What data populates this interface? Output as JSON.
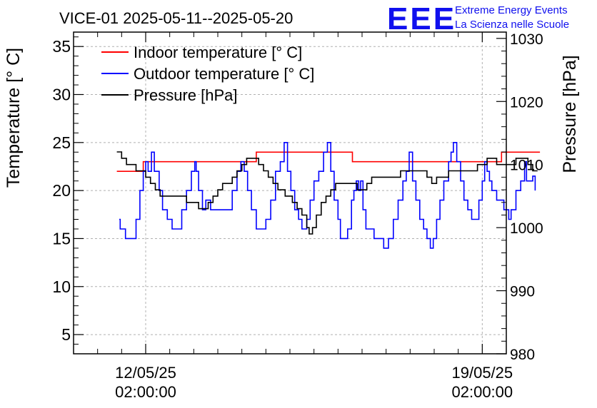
{
  "chart_data": {
    "type": "line",
    "title": "VICE-01 2025-05-11--2025-05-20",
    "logo": {
      "text": "EEE",
      "line1": "Extreme Energy Events",
      "line2": "La Scienza nelle Scuole",
      "color": "#1010ee"
    },
    "x_axis": {
      "range_days": [
        0,
        9
      ],
      "ticks": [
        {
          "day": 1.5,
          "date": "12/05/25",
          "time": "02:00:00"
        },
        {
          "day": 8.5,
          "date": "19/05/25",
          "time": "02:00:00"
        }
      ]
    },
    "y_left": {
      "label": "Temperature [° C]",
      "range": [
        3,
        36.5
      ],
      "ticks": [
        5,
        10,
        15,
        20,
        25,
        30,
        35
      ]
    },
    "y_right": {
      "label": "Pressure [hPa]",
      "range": [
        980,
        1031
      ],
      "ticks": [
        980,
        990,
        1000,
        1010,
        1020,
        1030
      ]
    },
    "legend": [
      {
        "key": "indoor",
        "label": "Indoor temperature [° C]",
        "color": "#ff0000"
      },
      {
        "key": "outdoor",
        "label": "Outdoor temperature [° C]",
        "color": "#0000ff"
      },
      {
        "key": "pressure",
        "label": "Pressure [hPa]",
        "color": "#000000"
      }
    ],
    "series": [
      {
        "name": "Indoor temperature [° C]",
        "axis": "left",
        "color": "#ff0000",
        "points": [
          [
            0.9,
            22
          ],
          [
            1.4,
            22
          ],
          [
            1.45,
            23
          ],
          [
            3.8,
            23
          ],
          [
            3.8,
            24
          ],
          [
            5.8,
            24
          ],
          [
            5.8,
            23
          ],
          [
            6.3,
            23
          ],
          [
            7.0,
            23
          ],
          [
            7.6,
            23
          ],
          [
            8.3,
            23
          ],
          [
            8.6,
            23
          ],
          [
            8.9,
            24
          ],
          [
            9.7,
            24
          ]
        ]
      },
      {
        "name": "Outdoor temperature [° C]",
        "axis": "left",
        "color": "#0000ff",
        "points": [
          [
            0.95,
            17
          ],
          [
            0.97,
            16
          ],
          [
            1.05,
            16
          ],
          [
            1.08,
            15
          ],
          [
            1.2,
            15
          ],
          [
            1.3,
            17
          ],
          [
            1.38,
            20
          ],
          [
            1.45,
            22
          ],
          [
            1.5,
            23
          ],
          [
            1.55,
            22
          ],
          [
            1.62,
            24
          ],
          [
            1.68,
            22
          ],
          [
            1.78,
            20
          ],
          [
            1.85,
            18
          ],
          [
            1.95,
            17
          ],
          [
            2.05,
            16
          ],
          [
            2.15,
            16
          ],
          [
            2.25,
            18
          ],
          [
            2.35,
            20
          ],
          [
            2.45,
            22
          ],
          [
            2.52,
            23
          ],
          [
            2.55,
            22
          ],
          [
            2.6,
            20
          ],
          [
            2.68,
            18
          ],
          [
            2.75,
            19
          ],
          [
            2.85,
            18
          ],
          [
            3.0,
            18
          ],
          [
            3.2,
            18
          ],
          [
            3.3,
            20
          ],
          [
            3.4,
            22
          ],
          [
            3.48,
            23
          ],
          [
            3.55,
            22
          ],
          [
            3.62,
            20
          ],
          [
            3.7,
            18
          ],
          [
            3.8,
            16
          ],
          [
            3.9,
            16
          ],
          [
            4.0,
            17
          ],
          [
            4.1,
            19
          ],
          [
            4.2,
            22
          ],
          [
            4.3,
            23
          ],
          [
            4.38,
            25
          ],
          [
            4.45,
            22
          ],
          [
            4.52,
            20
          ],
          [
            4.6,
            18
          ],
          [
            4.68,
            17
          ],
          [
            4.75,
            16
          ],
          [
            4.85,
            17
          ],
          [
            4.92,
            19
          ],
          [
            5.0,
            21
          ],
          [
            5.1,
            22
          ],
          [
            5.2,
            24
          ],
          [
            5.28,
            25
          ],
          [
            5.35,
            22
          ],
          [
            5.42,
            19
          ],
          [
            5.5,
            17
          ],
          [
            5.55,
            15
          ],
          [
            5.65,
            15
          ],
          [
            5.7,
            16
          ],
          [
            5.78,
            19
          ],
          [
            5.83,
            20
          ],
          [
            5.88,
            21
          ],
          [
            5.93,
            20
          ],
          [
            5.97,
            21
          ],
          [
            6.02,
            18
          ],
          [
            6.08,
            16
          ],
          [
            6.15,
            16
          ],
          [
            6.25,
            15
          ],
          [
            6.35,
            15
          ],
          [
            6.45,
            14
          ],
          [
            6.55,
            15
          ],
          [
            6.65,
            17
          ],
          [
            6.75,
            19
          ],
          [
            6.85,
            21
          ],
          [
            6.92,
            22
          ],
          [
            6.98,
            24
          ],
          [
            7.05,
            21
          ],
          [
            7.12,
            19
          ],
          [
            7.2,
            17
          ],
          [
            7.28,
            16
          ],
          [
            7.35,
            15
          ],
          [
            7.42,
            14
          ],
          [
            7.48,
            15
          ],
          [
            7.55,
            17
          ],
          [
            7.62,
            19
          ],
          [
            7.7,
            21
          ],
          [
            7.8,
            23
          ],
          [
            7.85,
            24
          ],
          [
            7.9,
            25
          ],
          [
            7.97,
            23
          ],
          [
            8.05,
            21
          ],
          [
            8.12,
            19
          ],
          [
            8.2,
            18
          ],
          [
            8.28,
            17
          ],
          [
            8.35,
            17
          ],
          [
            8.43,
            19
          ],
          [
            8.5,
            21
          ],
          [
            8.55,
            23
          ],
          [
            8.6,
            22
          ],
          [
            8.65,
            21
          ],
          [
            8.7,
            20
          ],
          [
            8.8,
            19
          ],
          [
            8.95,
            18
          ],
          [
            9.05,
            17
          ],
          [
            9.1,
            18
          ],
          [
            9.2,
            20
          ],
          [
            9.3,
            21
          ],
          [
            9.38,
            23
          ],
          [
            9.42,
            21
          ],
          [
            9.5,
            21
          ],
          [
            9.55,
            21.5
          ],
          [
            9.6,
            20
          ]
        ]
      },
      {
        "name": "Pressure [hPa]",
        "axis": "right",
        "color": "#000000",
        "points": [
          [
            0.9,
            1012
          ],
          [
            1.0,
            1011
          ],
          [
            1.1,
            1010
          ],
          [
            1.2,
            1010
          ],
          [
            1.3,
            1009
          ],
          [
            1.4,
            1009
          ],
          [
            1.5,
            1008
          ],
          [
            1.6,
            1007
          ],
          [
            1.7,
            1006
          ],
          [
            1.8,
            1005
          ],
          [
            2.0,
            1005
          ],
          [
            2.2,
            1005
          ],
          [
            2.35,
            1004
          ],
          [
            2.5,
            1004
          ],
          [
            2.6,
            1003
          ],
          [
            2.7,
            1003
          ],
          [
            2.8,
            1004
          ],
          [
            2.9,
            1005
          ],
          [
            3.0,
            1006
          ],
          [
            3.1,
            1007
          ],
          [
            3.2,
            1007
          ],
          [
            3.3,
            1008
          ],
          [
            3.4,
            1009
          ],
          [
            3.5,
            1010
          ],
          [
            3.6,
            1011
          ],
          [
            3.7,
            1011
          ],
          [
            3.85,
            1010
          ],
          [
            3.95,
            1009
          ],
          [
            4.05,
            1008
          ],
          [
            4.15,
            1007
          ],
          [
            4.25,
            1006
          ],
          [
            4.4,
            1005
          ],
          [
            4.55,
            1004
          ],
          [
            4.65,
            1003
          ],
          [
            4.75,
            1002
          ],
          [
            4.85,
            1000
          ],
          [
            4.9,
            999
          ],
          [
            4.97,
            1000
          ],
          [
            5.05,
            1002
          ],
          [
            5.15,
            1004
          ],
          [
            5.25,
            1005
          ],
          [
            5.35,
            1006
          ],
          [
            5.45,
            1007
          ],
          [
            5.6,
            1007
          ],
          [
            5.8,
            1007
          ],
          [
            5.9,
            1006
          ],
          [
            6.0,
            1006
          ],
          [
            6.1,
            1007
          ],
          [
            6.2,
            1008
          ],
          [
            6.35,
            1008
          ],
          [
            6.5,
            1008
          ],
          [
            6.65,
            1008
          ],
          [
            6.8,
            1009
          ],
          [
            6.95,
            1009
          ],
          [
            7.1,
            1009
          ],
          [
            7.25,
            1009
          ],
          [
            7.35,
            1008
          ],
          [
            7.45,
            1007
          ],
          [
            7.55,
            1008
          ],
          [
            7.65,
            1008
          ],
          [
            7.8,
            1009
          ],
          [
            7.95,
            1009
          ],
          [
            8.1,
            1009
          ],
          [
            8.25,
            1009
          ],
          [
            8.4,
            1010
          ],
          [
            8.5,
            1010
          ],
          [
            8.6,
            1011
          ],
          [
            8.8,
            1010
          ],
          [
            9.0,
            1010
          ],
          [
            9.2,
            1011
          ],
          [
            9.4,
            1011
          ],
          [
            9.45,
            1010
          ],
          [
            9.55,
            1009
          ],
          [
            9.65,
            1009
          ]
        ]
      }
    ]
  }
}
